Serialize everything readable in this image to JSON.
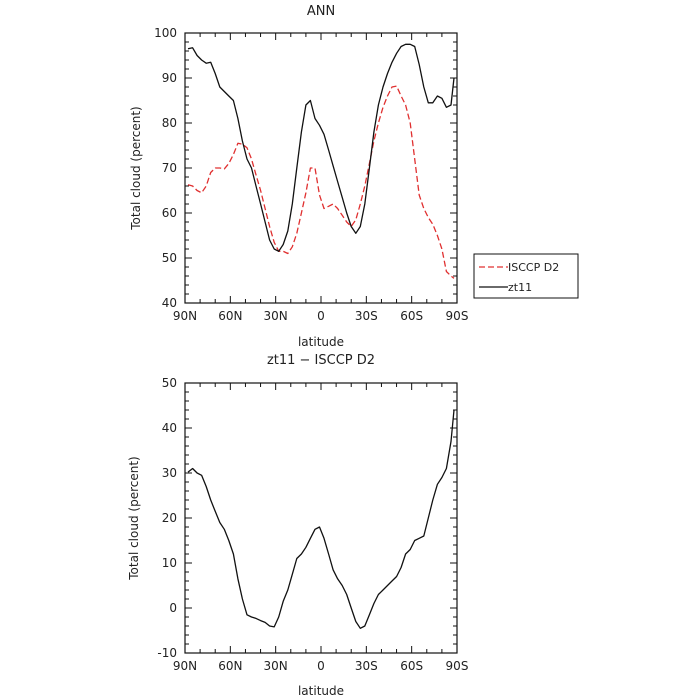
{
  "chart_data": [
    {
      "type": "line",
      "title": "ANN",
      "xlabel": "latitude",
      "ylabel": "Total cloud (percent)",
      "xlim": [
        90,
        -90
      ],
      "ylim": [
        40,
        100
      ],
      "x_ticks": [
        90,
        60,
        30,
        0,
        -30,
        -60,
        -90
      ],
      "x_tick_labels": [
        "90N",
        "60N",
        "30N",
        "0",
        "30S",
        "60S",
        "90S"
      ],
      "y_ticks": [
        40,
        50,
        60,
        70,
        80,
        90,
        100
      ],
      "grid": false,
      "legend_position": "right-bottom",
      "series": [
        {
          "name": "ISCCP D2",
          "color": "#e03030",
          "dash": "dashed",
          "x": [
            88,
            85,
            82,
            79,
            76,
            73,
            70,
            67,
            64,
            61,
            58,
            55,
            52,
            49,
            46,
            43,
            40,
            37,
            34,
            31,
            28,
            25,
            22,
            19,
            16,
            13,
            10,
            7,
            4,
            1,
            -2,
            -5,
            -8,
            -11,
            -14,
            -17,
            -20,
            -23,
            -26,
            -29,
            -32,
            -35,
            -38,
            -41,
            -44,
            -47,
            -50,
            -53,
            -56,
            -59,
            -62,
            -65,
            -68,
            -71,
            -74,
            -77,
            -80,
            -83,
            -86,
            -88
          ],
          "y": [
            66.3,
            66,
            65,
            64.5,
            66,
            69,
            70,
            70,
            69.8,
            71,
            73,
            75.5,
            75.3,
            74.5,
            72,
            68.5,
            65,
            61,
            57,
            53.5,
            51.5,
            51.5,
            51,
            52.5,
            55.5,
            60,
            64.5,
            70,
            70,
            64,
            61,
            61.5,
            62,
            61,
            59.5,
            58,
            57,
            58.5,
            62,
            66,
            71,
            76,
            80,
            83.5,
            86,
            88,
            88.2,
            86,
            84,
            80,
            72,
            64,
            61,
            59,
            57.5,
            55,
            52,
            47,
            46,
            45.5
          ]
        },
        {
          "name": "zt11",
          "color": "#111111",
          "dash": "solid",
          "x": [
            88,
            85,
            82,
            79,
            76,
            73,
            70,
            67,
            64,
            61,
            58,
            55,
            52,
            49,
            46,
            43,
            40,
            37,
            34,
            31,
            28,
            25,
            22,
            19,
            16,
            13,
            10,
            7,
            4,
            1,
            -2,
            -5,
            -8,
            -11,
            -14,
            -17,
            -20,
            -23,
            -26,
            -29,
            -32,
            -35,
            -38,
            -41,
            -44,
            -47,
            -50,
            -53,
            -56,
            -59,
            -62,
            -65,
            -68,
            -71,
            -74,
            -77,
            -80,
            -83,
            -86,
            -88
          ],
          "y": [
            96.5,
            96.7,
            95,
            94,
            93.3,
            93.5,
            91,
            88,
            87,
            86,
            85,
            81,
            76,
            72,
            70,
            66,
            62,
            58,
            54,
            52,
            51.5,
            53,
            56,
            62,
            70,
            78,
            84,
            85,
            81,
            79.5,
            77.5,
            74,
            70.5,
            67,
            63.5,
            60,
            57,
            55.5,
            57,
            62,
            70,
            78,
            84,
            88,
            91,
            93.5,
            95.5,
            97,
            97.5,
            97.5,
            97,
            93,
            88,
            84.5,
            84.5,
            86,
            85.5,
            83.5,
            84,
            90
          ]
        }
      ]
    },
    {
      "type": "line",
      "title": "zt11 − ISCCP D2",
      "xlabel": "latitude",
      "ylabel": "Total cloud (percent)",
      "xlim": [
        90,
        -90
      ],
      "ylim": [
        -10,
        50
      ],
      "x_ticks": [
        90,
        60,
        30,
        0,
        -30,
        -60,
        -90
      ],
      "x_tick_labels": [
        "90N",
        "60N",
        "30N",
        "0",
        "30S",
        "60S",
        "90S"
      ],
      "y_ticks": [
        -10,
        0,
        10,
        20,
        30,
        40,
        50
      ],
      "grid": false,
      "series": [
        {
          "color": "#111111",
          "dash": "solid",
          "x": [
            88,
            85,
            82,
            79,
            76,
            73,
            70,
            67,
            64,
            61,
            58,
            55,
            52,
            49,
            46,
            43,
            40,
            37,
            34,
            31,
            28,
            25,
            22,
            19,
            16,
            13,
            10,
            7,
            4,
            1,
            -2,
            -5,
            -8,
            -11,
            -14,
            -17,
            -20,
            -23,
            -26,
            -29,
            -32,
            -35,
            -38,
            -41,
            -44,
            -47,
            -50,
            -53,
            -56,
            -59,
            -62,
            -65,
            -68,
            -71,
            -74,
            -77,
            -80,
            -83,
            -86,
            -88
          ],
          "y": [
            30.2,
            31,
            30,
            29.5,
            27,
            24,
            21.5,
            19,
            17.5,
            15,
            12,
            6.5,
            2,
            -1.5,
            -2,
            -2.3,
            -2.8,
            -3.2,
            -4,
            -4.2,
            -2,
            1.5,
            4,
            7.5,
            11,
            12,
            13.5,
            15.5,
            17.5,
            18,
            15.5,
            12,
            8.5,
            6.5,
            5,
            3,
            0,
            -3,
            -4.5,
            -4,
            -1.5,
            1,
            3,
            4,
            5,
            6,
            7,
            9,
            12,
            13,
            15,
            15.5,
            16,
            20,
            24,
            27.5,
            29,
            31,
            37,
            44
          ]
        }
      ]
    }
  ]
}
